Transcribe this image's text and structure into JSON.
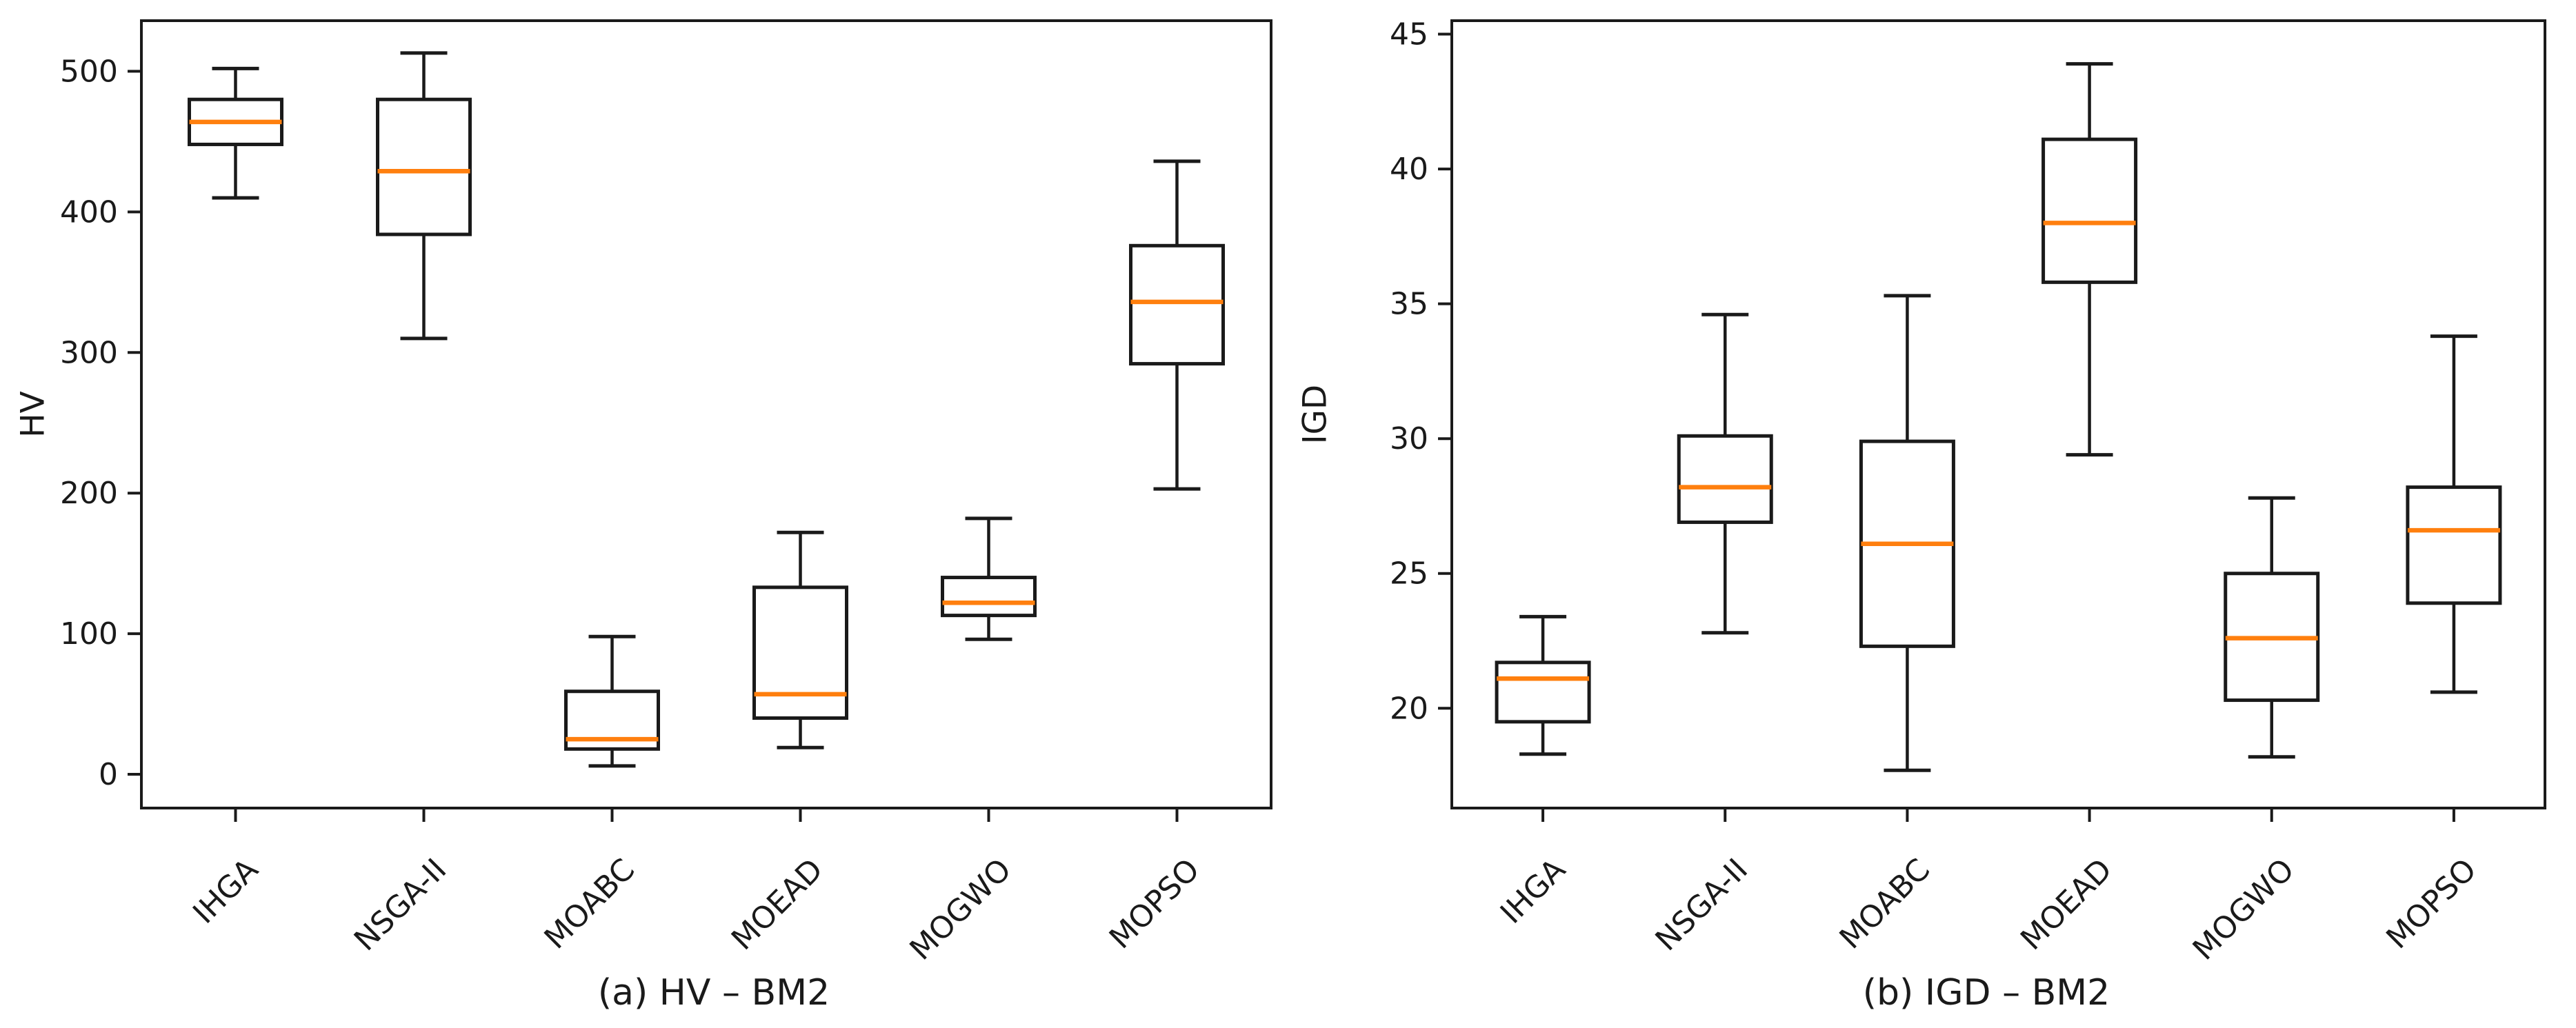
{
  "figure": {
    "background": "#ffffff",
    "type": "side-by-side matplotlib-style boxplot comparison"
  },
  "colors": {
    "line": "#1a1a1a",
    "median": "#ff7f0e",
    "text": "#1a1a1a",
    "box_fill": "#ffffff",
    "background": "#ffffff"
  },
  "chart_data": [
    {
      "type": "boxplot",
      "title": "(a) HV – BM2",
      "ylabel": "HV",
      "xlabel": "",
      "categories": [
        "IHGA",
        "NSGA-II",
        "MOABC",
        "MOEAD",
        "MOGWO",
        "MOPSO"
      ],
      "ylim": [
        -24,
        536
      ],
      "yticks": [
        0,
        100,
        200,
        300,
        400,
        500
      ],
      "xtick_rotation_deg": 45,
      "grid": false,
      "legend": "none",
      "series": [
        {
          "name": "IHGA",
          "whisker_low": 410,
          "q1": 448,
          "median": 464,
          "q3": 480,
          "whisker_high": 502
        },
        {
          "name": "NSGA-II",
          "whisker_low": 310,
          "q1": 384,
          "median": 429,
          "q3": 480,
          "whisker_high": 513
        },
        {
          "name": "MOABC",
          "whisker_low": 6,
          "q1": 18,
          "median": 25,
          "q3": 59,
          "whisker_high": 98
        },
        {
          "name": "MOEAD",
          "whisker_low": 19,
          "q1": 40,
          "median": 57,
          "q3": 133,
          "whisker_high": 172
        },
        {
          "name": "MOGWO",
          "whisker_low": 96,
          "q1": 113,
          "median": 122,
          "q3": 140,
          "whisker_high": 182
        },
        {
          "name": "MOPSO",
          "whisker_low": 203,
          "q1": 292,
          "median": 336,
          "q3": 376,
          "whisker_high": 436
        }
      ]
    },
    {
      "type": "boxplot",
      "title": "(b) IGD – BM2",
      "ylabel": "IGD",
      "xlabel": "",
      "categories": [
        "IHGA",
        "NSGA-II",
        "MOABC",
        "MOEAD",
        "MOGWO",
        "MOPSO"
      ],
      "ylim": [
        16.3,
        45.5
      ],
      "yticks": [
        20,
        25,
        30,
        35,
        40,
        45
      ],
      "xtick_rotation_deg": 45,
      "grid": false,
      "legend": "none",
      "series": [
        {
          "name": "IHGA",
          "whisker_low": 18.3,
          "q1": 19.5,
          "median": 21.1,
          "q3": 21.7,
          "whisker_high": 23.4
        },
        {
          "name": "NSGA-II",
          "whisker_low": 22.8,
          "q1": 26.9,
          "median": 28.2,
          "q3": 30.1,
          "whisker_high": 34.6
        },
        {
          "name": "MOABC",
          "whisker_low": 17.7,
          "q1": 22.3,
          "median": 26.1,
          "q3": 29.9,
          "whisker_high": 35.3
        },
        {
          "name": "MOEAD",
          "whisker_low": 29.4,
          "q1": 35.8,
          "median": 38.0,
          "q3": 41.1,
          "whisker_high": 43.9
        },
        {
          "name": "MOGWO",
          "whisker_low": 18.2,
          "q1": 20.3,
          "median": 22.6,
          "q3": 25.0,
          "whisker_high": 27.8
        },
        {
          "name": "MOPSO",
          "whisker_low": 20.6,
          "q1": 23.9,
          "median": 26.6,
          "q3": 28.2,
          "whisker_high": 33.8
        }
      ]
    }
  ]
}
